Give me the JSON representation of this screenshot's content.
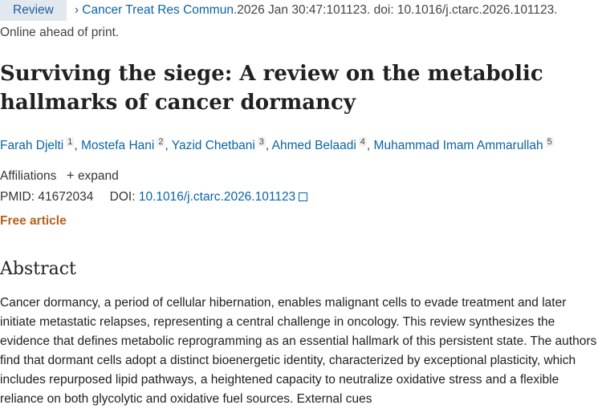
{
  "header": {
    "badge": "Review",
    "journal": "Cancer Treat Res Commun.",
    "citation": " 2026 Jan 30:47:101123. doi: 10.1016/j.ctarc.2026.101123.",
    "status": "Online ahead of print."
  },
  "title": "Surviving the siege: A review on the metabolic hallmarks of cancer dormancy",
  "authors": [
    {
      "name": "Farah Djelti",
      "sup": "1"
    },
    {
      "name": "Mostefa Hani",
      "sup": "2"
    },
    {
      "name": "Yazid Chetbani",
      "sup": "3"
    },
    {
      "name": "Ahmed Belaadi",
      "sup": "4"
    },
    {
      "name": "Muhammad Imam Ammarullah",
      "sup": "5"
    }
  ],
  "affiliations": {
    "label": "Affiliations",
    "expand": "expand",
    "plus": "+"
  },
  "ids": {
    "pmid_label": "PMID:",
    "pmid": "41672034",
    "doi_label": "DOI:",
    "doi": "10.1016/j.ctarc.2026.101123"
  },
  "free_label": "Free article",
  "abstract": {
    "heading": "Abstract",
    "text": "Cancer dormancy, a period of cellular hibernation, enables malignant cells to evade treatment and later initiate metastatic relapses, representing a central challenge in oncology. This review synthesizes the evidence that defines metabolic reprogramming as an essential hallmark of this persistent state. The authors find that dormant cells adopt a distinct bioenergetic identity, characterized by exceptional plasticity, which includes repurposed lipid pathways, a heightened capacity to neutralize oxidative stress and a flexible reliance on both glycolytic and oxidative fuel sources. External cues"
  },
  "colors": {
    "link": "#0b63a6",
    "free": "#b3611e",
    "badge_bg": "#e2e8f0"
  }
}
